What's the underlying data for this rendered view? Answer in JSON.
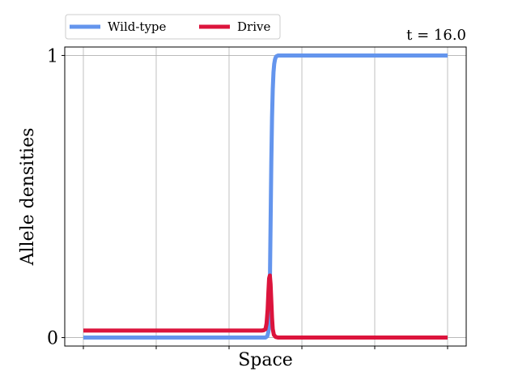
{
  "chart_data": {
    "type": "line",
    "annotation": "t = 16.0",
    "xlabel": "Space",
    "ylabel": "Allele densities",
    "xlim": [
      0,
      1
    ],
    "ylim": [
      -0.03,
      1.03
    ],
    "yticks": [
      0,
      1
    ],
    "ytick_labels": [
      "0",
      "1"
    ],
    "xticks": [
      0,
      0.2,
      0.4,
      0.6,
      0.8,
      1.0
    ],
    "xtick_labels_visible": false,
    "grid": true,
    "legend_position": "top-left-outside",
    "series": [
      {
        "name": "Wild-type",
        "color": "#6495ed",
        "x": [
          0,
          0.2,
          0.4,
          0.5,
          0.5,
          0.505,
          0.508,
          0.51,
          0.512,
          0.514,
          0.516,
          0.518,
          0.52,
          0.522,
          0.524,
          0.526,
          0.528,
          0.53,
          0.535,
          0.545,
          0.56,
          0.6,
          0.7,
          0.8,
          0.9,
          1.0
        ],
        "y": [
          0,
          0,
          0,
          0,
          0,
          0.005,
          0.02,
          0.06,
          0.18,
          0.4,
          0.62,
          0.78,
          0.88,
          0.94,
          0.97,
          0.985,
          0.993,
          0.997,
          1.0,
          1.0,
          1.0,
          1.0,
          1.0,
          1.0,
          1.0,
          1.0
        ]
      },
      {
        "name": "Drive",
        "color": "#dc143c",
        "x": [
          0,
          0.2,
          0.4,
          0.49,
          0.495,
          0.5,
          0.503,
          0.506,
          0.508,
          0.51,
          0.512,
          0.514,
          0.516,
          0.518,
          0.52,
          0.523,
          0.528,
          0.535,
          0.55,
          0.6,
          0.8,
          1.0
        ],
        "y": [
          0.025,
          0.025,
          0.025,
          0.025,
          0.026,
          0.03,
          0.05,
          0.1,
          0.16,
          0.21,
          0.22,
          0.19,
          0.13,
          0.07,
          0.03,
          0.01,
          0.002,
          0.0,
          0.0,
          0.0,
          0.0,
          0.0
        ]
      }
    ]
  }
}
